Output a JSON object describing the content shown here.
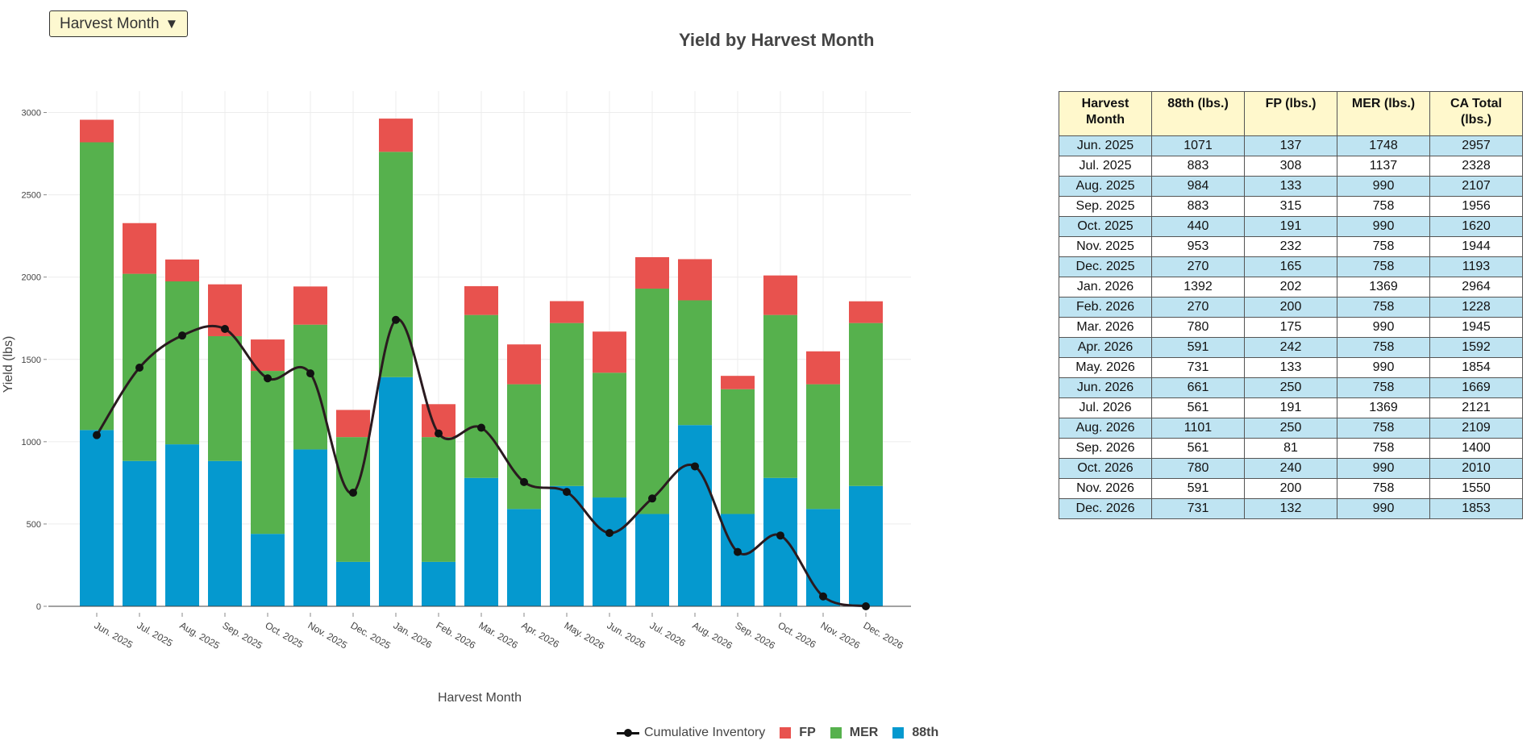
{
  "dropdown": {
    "label": "Harvest Month",
    "arrow": "▼"
  },
  "colors": {
    "fp": "#e8524e",
    "mer": "#56b14d",
    "eighty_eighth": "#0599cf",
    "cumulative": "#2a1a1f",
    "grid": "#ececec"
  },
  "legend": {
    "cumulative": "Cumulative Inventory",
    "fp": "FP",
    "mer": "MER",
    "eighty_eighth": "88th"
  },
  "table": {
    "headers": [
      "Harvest Month",
      "88th (lbs.)",
      "FP (lbs.)",
      "MER (lbs.)",
      "CA Total (lbs.)"
    ],
    "rows": [
      [
        "Jun. 2025",
        "1071",
        "137",
        "1748",
        "2957"
      ],
      [
        "Jul. 2025",
        "883",
        "308",
        "1137",
        "2328"
      ],
      [
        "Aug. 2025",
        "984",
        "133",
        "990",
        "2107"
      ],
      [
        "Sep. 2025",
        "883",
        "315",
        "758",
        "1956"
      ],
      [
        "Oct. 2025",
        "440",
        "191",
        "990",
        "1620"
      ],
      [
        "Nov. 2025",
        "953",
        "232",
        "758",
        "1944"
      ],
      [
        "Dec. 2025",
        "270",
        "165",
        "758",
        "1193"
      ],
      [
        "Jan. 2026",
        "1392",
        "202",
        "1369",
        "2964"
      ],
      [
        "Feb. 2026",
        "270",
        "200",
        "758",
        "1228"
      ],
      [
        "Mar. 2026",
        "780",
        "175",
        "990",
        "1945"
      ],
      [
        "Apr. 2026",
        "591",
        "242",
        "758",
        "1592"
      ],
      [
        "May. 2026",
        "731",
        "133",
        "990",
        "1854"
      ],
      [
        "Jun. 2026",
        "661",
        "250",
        "758",
        "1669"
      ],
      [
        "Jul. 2026",
        "561",
        "191",
        "1369",
        "2121"
      ],
      [
        "Aug. 2026",
        "1101",
        "250",
        "758",
        "2109"
      ],
      [
        "Sep. 2026",
        "561",
        "81",
        "758",
        "1400"
      ],
      [
        "Oct. 2026",
        "780",
        "240",
        "990",
        "2010"
      ],
      [
        "Nov. 2026",
        "591",
        "200",
        "758",
        "1550"
      ],
      [
        "Dec. 2026",
        "731",
        "132",
        "990",
        "1853"
      ]
    ]
  },
  "chart_data": {
    "type": "bar",
    "stacked": true,
    "title": "Yield by Harvest Month",
    "xlabel": "Harvest Month",
    "ylabel": "Yield (lbs)",
    "ylim": [
      0,
      3130
    ],
    "yticks": [
      0,
      500,
      1000,
      1500,
      2000,
      2500,
      3000
    ],
    "grid": true,
    "legend_position": "bottom",
    "categories": [
      "Jun. 2025",
      "Jul. 2025",
      "Aug. 2025",
      "Sep. 2025",
      "Oct. 2025",
      "Nov. 2025",
      "Dec. 2025",
      "Jan. 2026",
      "Feb. 2026",
      "Mar. 2026",
      "Apr. 2026",
      "May. 2026",
      "Jun. 2026",
      "Jul. 2026",
      "Aug. 2026",
      "Sep. 2026",
      "Oct. 2026",
      "Nov. 2026",
      "Dec. 2026"
    ],
    "series": [
      {
        "name": "88th",
        "kind": "bar",
        "values": [
          1071,
          883,
          984,
          883,
          440,
          953,
          270,
          1392,
          270,
          780,
          591,
          731,
          661,
          561,
          1101,
          561,
          780,
          591,
          731
        ]
      },
      {
        "name": "MER",
        "kind": "bar",
        "values": [
          1748,
          1137,
          990,
          758,
          990,
          758,
          758,
          1369,
          758,
          990,
          758,
          990,
          758,
          1369,
          758,
          758,
          990,
          758,
          990
        ]
      },
      {
        "name": "FP",
        "kind": "bar",
        "values": [
          137,
          308,
          133,
          315,
          191,
          232,
          165,
          202,
          200,
          175,
          242,
          133,
          250,
          191,
          250,
          81,
          240,
          200,
          132
        ]
      },
      {
        "name": "Cumulative Inventory",
        "kind": "line",
        "values": [
          1040,
          1450,
          1645,
          1685,
          1385,
          1415,
          690,
          1740,
          1050,
          1085,
          755,
          695,
          445,
          655,
          850,
          330,
          430,
          60,
          0
        ]
      }
    ]
  }
}
